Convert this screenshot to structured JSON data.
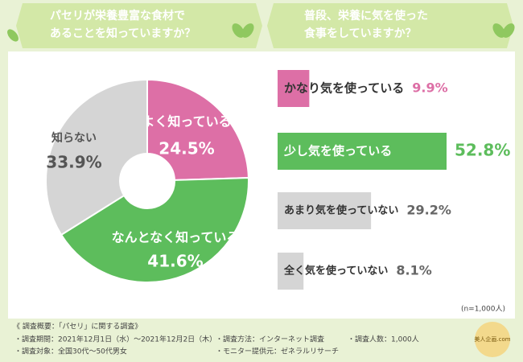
{
  "chart_data": [
    {
      "type": "pie",
      "title": [
        "パセリが栄養豊富な食材で",
        "あることを知っていますか？"
      ],
      "categories": [
        "よく知っている",
        "なんとなく知っている",
        "知らない"
      ],
      "values": [
        24.5,
        41.6,
        33.9
      ],
      "value_labels": [
        "24.5%",
        "41.6%",
        "33.9%"
      ],
      "colors": [
        "#dd6fa6",
        "#5dbd5c",
        "#d5d5d5"
      ]
    },
    {
      "type": "bar",
      "title": [
        "普段、栄養に気を使った",
        "食事をしていますか？"
      ],
      "categories": [
        "かなり気を使っている",
        "少し気を使っている",
        "あまり気を使っていない",
        "全く気を使っていない"
      ],
      "values": [
        9.9,
        52.8,
        29.2,
        8.1
      ],
      "value_labels": [
        "9.9%",
        "52.8%",
        "29.2%",
        "8.1%"
      ],
      "colors": [
        "#dd6fa6",
        "#5dbd5c",
        "#d5d5d5",
        "#d5d5d5"
      ]
    }
  ],
  "sample_note": "(n=1,000人)",
  "footer": {
    "heading": "《 調査概要：「パセリ」に関する調査》",
    "items": [
      "・調査期間：2021年12月1日（水）～2021年12月2日（木）",
      "・調査方法：インターネット調査",
      "・調査人数：1,000人",
      "・調査対象：全国30代～50代男女",
      "・モニター提供元：ゼネラルリサーチ"
    ]
  },
  "logo": "美人企画.com"
}
